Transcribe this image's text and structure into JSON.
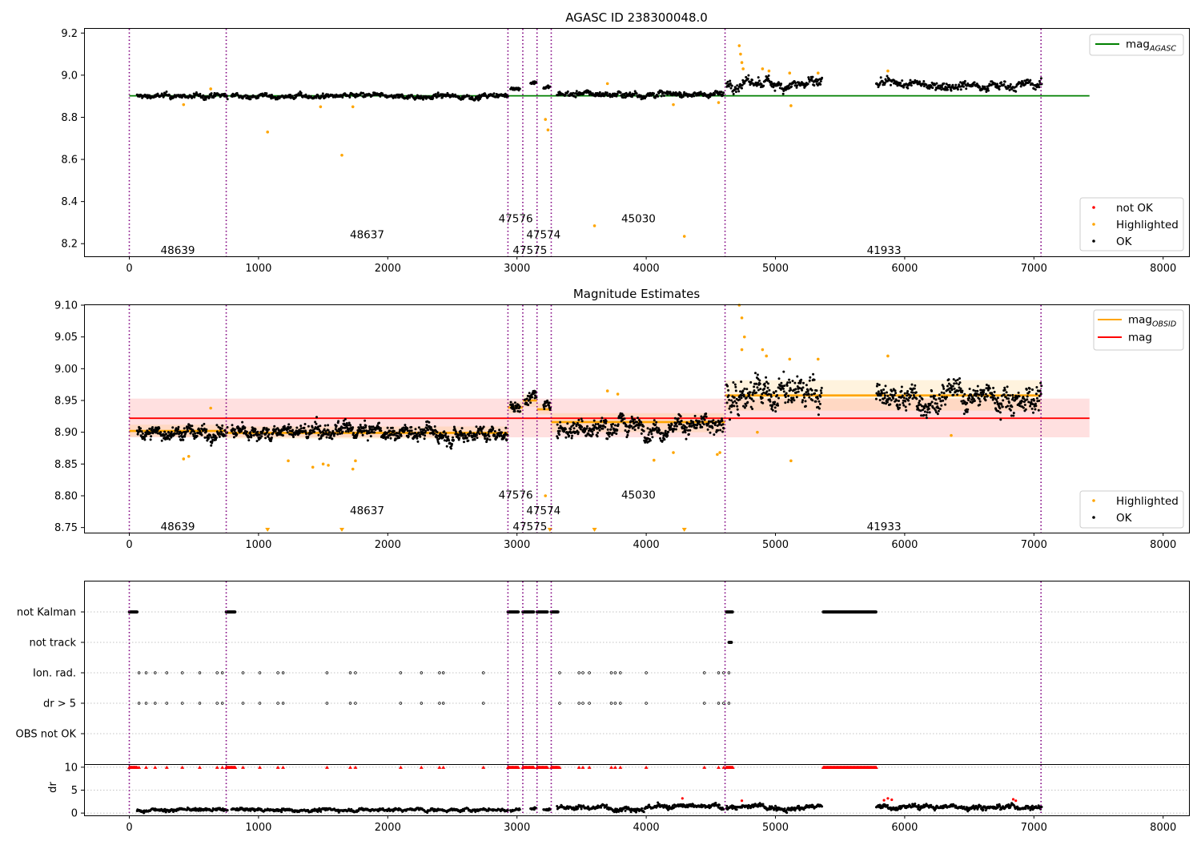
{
  "chart_data": [
    {
      "id": "agasc",
      "type": "scatter",
      "title": "AGASC ID 238300048.0",
      "xlim": [
        -350,
        8200
      ],
      "ylim": [
        8.14,
        9.22
      ],
      "xticks": [
        0,
        1000,
        2000,
        3000,
        4000,
        5000,
        6000,
        7000,
        8000
      ],
      "xtick_labels": [
        "0",
        "1000",
        "2000",
        "3000",
        "4000",
        "5000",
        "6000",
        "7000",
        "8000"
      ],
      "yticks": [
        8.2,
        8.4,
        8.6,
        8.8,
        9.0,
        9.2
      ],
      "ytick_labels": [
        "8.2",
        "8.4",
        "8.6",
        "8.8",
        "9.0",
        "9.2"
      ],
      "vlines": [
        0,
        750,
        2930,
        3045,
        3155,
        3265,
        4610,
        7055
      ],
      "obs_labels": [
        {
          "text": "48639",
          "x": 375,
          "y": 8.17
        },
        {
          "text": "48637",
          "x": 1840,
          "y": 8.245
        },
        {
          "text": "47576",
          "x": 2990,
          "y": 8.32
        },
        {
          "text": "47574",
          "x": 3205,
          "y": 8.245
        },
        {
          "text": "47575",
          "x": 3100,
          "y": 8.17
        },
        {
          "text": "45030",
          "x": 3940,
          "y": 8.32
        },
        {
          "text": "41933",
          "x": 5840,
          "y": 8.17
        }
      ],
      "reference_lines": [
        {
          "name": "mag_AGASC",
          "y": 8.902,
          "x": [
            0,
            7430
          ],
          "color": "#008000"
        }
      ],
      "segments": [
        {
          "x0": 60,
          "x1": 760,
          "base": 8.9,
          "noise": 0.013
        },
        {
          "x0": 790,
          "x1": 2930,
          "base": 8.9,
          "noise": 0.013
        },
        {
          "x0": 2950,
          "x1": 3025,
          "base": 8.94,
          "noise": 0.01
        },
        {
          "x0": 3105,
          "x1": 3150,
          "base": 8.965,
          "noise": 0.01
        },
        {
          "x0": 3205,
          "x1": 3260,
          "base": 8.94,
          "noise": 0.01
        },
        {
          "x0": 3310,
          "x1": 4600,
          "base": 8.91,
          "noise": 0.016
        },
        {
          "x0": 4620,
          "x1": 5360,
          "base": 8.96,
          "noise": 0.028
        },
        {
          "x0": 5780,
          "x1": 7060,
          "base": 8.955,
          "noise": 0.022
        }
      ],
      "highlighted_points": [
        [
          1070,
          8.73
        ],
        [
          1645,
          8.62
        ],
        [
          3220,
          8.79
        ],
        [
          3240,
          8.74
        ],
        [
          3600,
          8.285
        ],
        [
          4295,
          8.235
        ],
        [
          420,
          8.86
        ],
        [
          1480,
          8.85
        ],
        [
          1730,
          8.85
        ],
        [
          3700,
          8.96
        ],
        [
          4210,
          8.86
        ],
        [
          4720,
          9.14
        ],
        [
          4730,
          9.1
        ],
        [
          4740,
          9.06
        ],
        [
          4750,
          9.03
        ],
        [
          4900,
          9.03
        ],
        [
          4950,
          9.02
        ],
        [
          5120,
          8.855
        ],
        [
          5110,
          9.01
        ],
        [
          5330,
          9.01
        ],
        [
          5870,
          9.02
        ],
        [
          630,
          8.935
        ],
        [
          4560,
          8.87
        ]
      ],
      "legend": {
        "top": [
          {
            "name": "mag_AGASC",
            "label": "mag",
            "sub": "AGASC",
            "color": "#008000"
          }
        ],
        "bottom": [
          {
            "name": "not OK",
            "label": "not OK",
            "color": "#ff0000"
          },
          {
            "name": "Highlighted",
            "label": "Highlighted",
            "color": "#ffa500"
          },
          {
            "name": "OK",
            "label": "OK",
            "color": "#000000"
          }
        ]
      }
    },
    {
      "id": "estimates",
      "type": "scatter",
      "title": "Magnitude Estimates",
      "xlim": [
        -350,
        8200
      ],
      "ylim": [
        8.742,
        9.1
      ],
      "xticks": [
        0,
        1000,
        2000,
        3000,
        4000,
        5000,
        6000,
        7000,
        8000
      ],
      "xtick_labels": [
        "0",
        "1000",
        "2000",
        "3000",
        "4000",
        "5000",
        "6000",
        "7000",
        "8000"
      ],
      "yticks": [
        8.75,
        8.8,
        8.85,
        8.9,
        8.95,
        9.0,
        9.05,
        9.1
      ],
      "ytick_labels": [
        "8.75",
        "8.80",
        "8.85",
        "8.90",
        "8.95",
        "9.00",
        "9.05",
        "9.10"
      ],
      "vlines": [
        0,
        750,
        2930,
        3045,
        3155,
        3265,
        4610,
        7055
      ],
      "obs_labels": [
        {
          "text": "48639",
          "x": 375,
          "y": 8.752
        },
        {
          "text": "48637",
          "x": 1840,
          "y": 8.777
        },
        {
          "text": "47576",
          "x": 2990,
          "y": 8.802
        },
        {
          "text": "47574",
          "x": 3205,
          "y": 8.777
        },
        {
          "text": "47575",
          "x": 3100,
          "y": 8.752
        },
        {
          "text": "45030",
          "x": 3940,
          "y": 8.802
        },
        {
          "text": "41933",
          "x": 5840,
          "y": 8.752
        }
      ],
      "mag_line": {
        "y": 8.922,
        "band": [
          8.892,
          8.953
        ],
        "x": [
          0,
          7430
        ],
        "color": "#ff0000"
      },
      "obsid_mags": [
        {
          "x0": 0,
          "x1": 750,
          "y": 8.902,
          "band": [
            8.893,
            8.912
          ]
        },
        {
          "x0": 750,
          "x1": 2930,
          "y": 8.899,
          "band": [
            8.89,
            8.909
          ]
        },
        {
          "x0": 2930,
          "x1": 3045,
          "y": 8.939,
          "band": [
            8.93,
            8.948
          ]
        },
        {
          "x0": 3045,
          "x1": 3155,
          "y": 8.95,
          "band": [
            8.94,
            8.96
          ]
        },
        {
          "x0": 3155,
          "x1": 3265,
          "y": 8.936,
          "band": [
            8.928,
            8.945
          ]
        },
        {
          "x0": 3265,
          "x1": 4610,
          "y": 8.916,
          "band": [
            8.9,
            8.93
          ]
        },
        {
          "x0": 4610,
          "x1": 7055,
          "y": 8.958,
          "band": [
            8.934,
            8.982
          ]
        }
      ],
      "segments": [
        {
          "x0": 60,
          "x1": 760,
          "base": 8.9,
          "noise": 0.013
        },
        {
          "x0": 790,
          "x1": 2930,
          "base": 8.9,
          "noise": 0.013
        },
        {
          "x0": 2950,
          "x1": 3025,
          "base": 8.94,
          "noise": 0.01
        },
        {
          "x0": 3060,
          "x1": 3150,
          "base": 8.955,
          "noise": 0.012
        },
        {
          "x0": 3205,
          "x1": 3260,
          "base": 8.94,
          "noise": 0.01
        },
        {
          "x0": 3310,
          "x1": 4600,
          "base": 8.91,
          "noise": 0.016
        },
        {
          "x0": 4620,
          "x1": 5360,
          "base": 8.96,
          "noise": 0.028
        },
        {
          "x0": 5780,
          "x1": 7060,
          "base": 8.955,
          "noise": 0.022
        }
      ],
      "highlighted_points": [
        [
          420,
          8.858
        ],
        [
          460,
          8.862
        ],
        [
          630,
          8.938
        ],
        [
          1230,
          8.855
        ],
        [
          1420,
          8.845
        ],
        [
          1500,
          8.85
        ],
        [
          1540,
          8.848
        ],
        [
          1730,
          8.842
        ],
        [
          1750,
          8.855
        ],
        [
          3700,
          8.965
        ],
        [
          3780,
          8.96
        ],
        [
          4210,
          8.868
        ],
        [
          4060,
          8.856
        ],
        [
          4550,
          8.865
        ],
        [
          4570,
          8.868
        ],
        [
          4720,
          9.1
        ],
        [
          4740,
          9.08
        ],
        [
          4760,
          9.05
        ],
        [
          4740,
          9.03
        ],
        [
          4900,
          9.03
        ],
        [
          4930,
          9.02
        ],
        [
          5120,
          8.855
        ],
        [
          5110,
          9.015
        ],
        [
          5330,
          9.015
        ],
        [
          5870,
          9.02
        ],
        [
          6360,
          8.895
        ],
        [
          3220,
          8.8
        ],
        [
          4860,
          8.9
        ]
      ],
      "clipped_points_x": [
        1070,
        1645,
        3255,
        3600,
        4295
      ],
      "legend": {
        "top": [
          {
            "name": "mag_OBSID",
            "label": "mag",
            "sub": "OBSID",
            "color": "#ffa500"
          },
          {
            "name": "mag",
            "label": "mag",
            "sub": "",
            "color": "#ff0000"
          }
        ],
        "bottom": [
          {
            "name": "Highlighted",
            "label": "Highlighted",
            "color": "#ffa500"
          },
          {
            "name": "OK",
            "label": "OK",
            "color": "#000000"
          }
        ]
      }
    },
    {
      "id": "flags",
      "type": "scatter",
      "xlim": [
        -350,
        8200
      ],
      "categories": [
        "not Kalman",
        "not track",
        "Ion. rad.",
        "dr > 5",
        "OBS not OK"
      ],
      "vlines": [
        0,
        750,
        2930,
        3045,
        3155,
        3265,
        4610,
        7055
      ],
      "flag_ranges": {
        "not Kalman": [
          [
            0,
            60
          ],
          [
            750,
            820
          ],
          [
            2930,
            3010
          ],
          [
            3045,
            3130
          ],
          [
            3155,
            3235
          ],
          [
            3265,
            3320
          ],
          [
            4620,
            4670
          ],
          [
            5370,
            5780
          ]
        ],
        "not track": [
          [
            4640,
            4660
          ]
        ],
        "Ion. rad.": [],
        "dr > 5": [],
        "OBS not OK": []
      },
      "sparse_flags_x": [
        75,
        130,
        200,
        290,
        410,
        545,
        680,
        720,
        880,
        1010,
        1150,
        1190,
        1530,
        1710,
        1750,
        2100,
        2260,
        2400,
        2430,
        2740,
        3330,
        3480,
        3510,
        3560,
        3730,
        3760,
        3800,
        4000,
        4450,
        4560,
        4600,
        4640
      ]
    },
    {
      "id": "dr",
      "type": "scatter",
      "xlim": [
        -350,
        8200
      ],
      "ylim": [
        -0.5,
        10.5
      ],
      "ylabel": "dr",
      "yticks": [
        0,
        5,
        10
      ],
      "ytick_labels": [
        "0",
        "5",
        "10"
      ],
      "xticks": [
        0,
        1000,
        2000,
        3000,
        4000,
        5000,
        6000,
        7000,
        8000
      ],
      "xtick_labels": [
        "0",
        "1000",
        "2000",
        "3000",
        "4000",
        "5000",
        "6000",
        "7000",
        "8000"
      ],
      "clip_value": 10,
      "segments": [
        {
          "x0": 60,
          "x1": 760,
          "base": 0.7,
          "noise": 0.4
        },
        {
          "x0": 790,
          "x1": 2930,
          "base": 0.7,
          "noise": 0.4
        },
        {
          "x0": 2950,
          "x1": 3025,
          "base": 0.7,
          "noise": 0.4
        },
        {
          "x0": 3105,
          "x1": 3150,
          "base": 0.9,
          "noise": 0.4
        },
        {
          "x0": 3205,
          "x1": 3260,
          "base": 0.9,
          "noise": 0.4
        },
        {
          "x0": 3310,
          "x1": 4600,
          "base": 1.3,
          "noise": 0.6
        },
        {
          "x0": 4620,
          "x1": 5360,
          "base": 1.3,
          "noise": 0.6
        },
        {
          "x0": 5780,
          "x1": 7060,
          "base": 1.4,
          "noise": 0.6
        }
      ],
      "red_points": [
        [
          4280,
          3.2
        ],
        [
          4740,
          2.7
        ],
        [
          5840,
          2.8
        ],
        [
          5870,
          3.2
        ],
        [
          5900,
          2.9
        ],
        [
          6840,
          3.0
        ],
        [
          6860,
          2.7
        ]
      ]
    }
  ]
}
